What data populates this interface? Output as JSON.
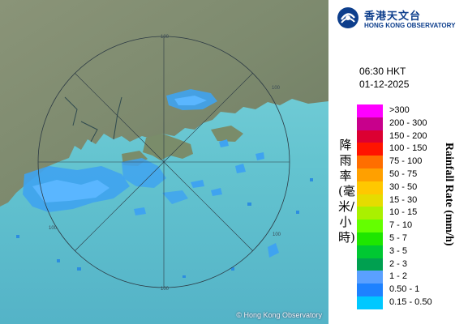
{
  "map": {
    "copyright": "© Hong Kong Observatory",
    "range_rings": [
      "100",
      "100",
      "100",
      "100",
      "100"
    ]
  },
  "logo": {
    "name_cn": "香港天文台",
    "name_en": "HONG KONG OBSERVATORY",
    "icon": "observatory-logo-icon",
    "color": "#0d3e8c"
  },
  "timestamp": {
    "time": "06:30 HKT",
    "date": "01-12-2025"
  },
  "legend": {
    "title_cn": "降雨率(毫米/小時)",
    "title_en": "Rainfall Rate (mm/h)",
    "items": [
      {
        "label": ">300",
        "color": "#ff00ff"
      },
      {
        "label": "200 - 300",
        "color": "#c8008c"
      },
      {
        "label": "150 - 200",
        "color": "#dc0032"
      },
      {
        "label": "100 - 150",
        "color": "#ff1400"
      },
      {
        "label": "75 - 100",
        "color": "#ff6e00"
      },
      {
        "label": "50 - 75",
        "color": "#ffa000"
      },
      {
        "label": "30 - 50",
        "color": "#ffc800"
      },
      {
        "label": "15 - 30",
        "color": "#e6dc00"
      },
      {
        "label": "10 - 15",
        "color": "#aaf000"
      },
      {
        "label": "7 - 10",
        "color": "#64ff00"
      },
      {
        "label": "5 - 7",
        "color": "#1ee600"
      },
      {
        "label": "3 - 5",
        "color": "#00c832"
      },
      {
        "label": "2 - 3",
        "color": "#00a050"
      },
      {
        "label": "1 - 2",
        "color": "#5aa0ff"
      },
      {
        "label": "0.50 - 1",
        "color": "#1e82ff"
      },
      {
        "label": "0.15 - 0.50",
        "color": "#00c8ff"
      }
    ]
  }
}
